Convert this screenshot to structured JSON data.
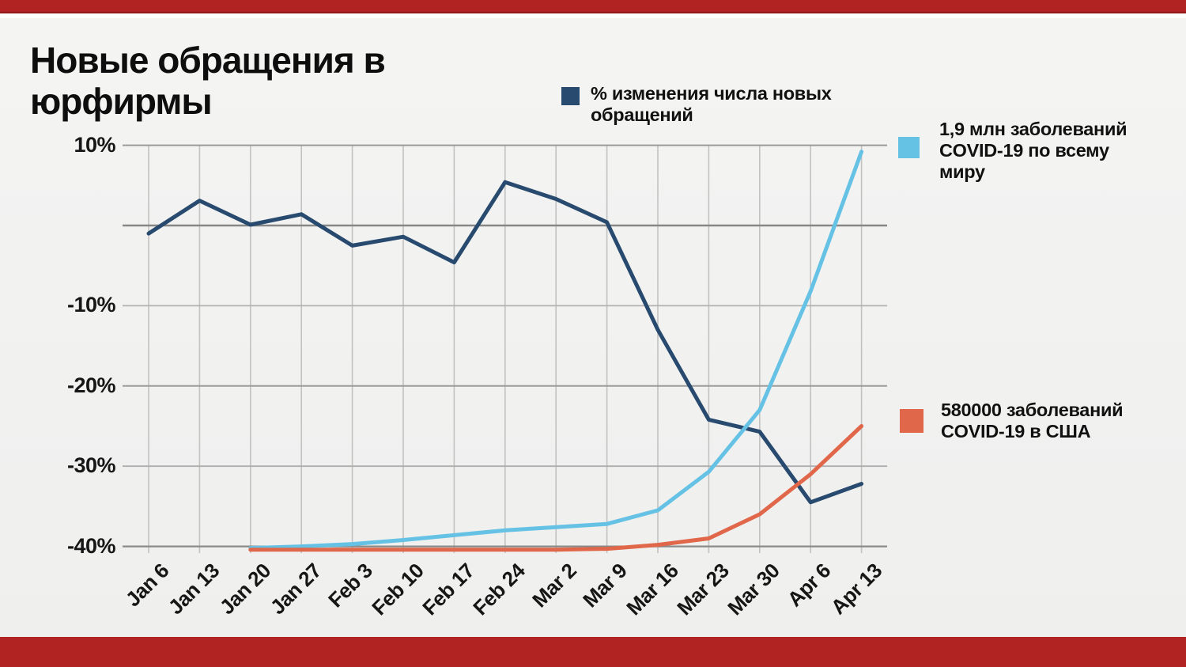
{
  "page": {
    "title": "Новые обращения в юрфирмы",
    "background_color": "#f1f1f0",
    "accent_red": "#b12222"
  },
  "legend": [
    {
      "label": "% изменения числа новых обращений",
      "lines": [
        "% изменения числа новых",
        "обращений"
      ],
      "color": "#274a6e"
    },
    {
      "label": "1,9 млн заболеваний COVID-19 по всему миру",
      "lines": [
        "1,9 млн заболеваний",
        "COVID-19 по всему",
        "миру"
      ],
      "color": "#66c2e5"
    },
    {
      "label": "580000 заболеваний COVID-19 в США",
      "lines": [
        "580000 заболеваний",
        "COVID-19 в США"
      ],
      "color": "#e0674a"
    }
  ],
  "chart_data": {
    "type": "line",
    "title": "Новые обращения в юрфирмы",
    "xlabel": "",
    "ylabel": "",
    "ylim": [
      -40,
      10
    ],
    "grid": true,
    "legend_position": "right",
    "categories": [
      "Jan 6",
      "Jan 13",
      "Jan 20",
      "Jan 27",
      "Feb 3",
      "Feb 10",
      "Feb 17",
      "Feb 24",
      "Mar 2",
      "Mar 9",
      "Mar 16",
      "Mar 23",
      "Mar 30",
      "Apr 6",
      "Apr 13"
    ],
    "y_ticks": [
      {
        "label": "10%",
        "value": 10
      },
      {
        "label": "-10%",
        "value": -10
      },
      {
        "label": "-20%",
        "value": -20
      },
      {
        "label": "-30%",
        "value": -30
      },
      {
        "label": "-40%",
        "value": -40
      }
    ],
    "zero_line_value": 0,
    "series": [
      {
        "name": "% изменения числа новых обращений",
        "color": "#274a6e",
        "values": [
          -1,
          3.1,
          0.1,
          1.4,
          -2.5,
          -1.4,
          -4.6,
          5.4,
          3.3,
          0.4,
          -13,
          -24.2,
          -25.7,
          -34.5,
          -32.2
        ]
      },
      {
        "name": "1,9 млн заболеваний COVID-19 по всему миру",
        "color": "#66c2e5",
        "values": [
          null,
          null,
          -40.2,
          -40,
          -39.7,
          -39.2,
          -38.6,
          -38,
          -37.6,
          -37.2,
          -35.5,
          -30.7,
          -23,
          -8.2,
          9.2
        ]
      },
      {
        "name": "580000 заболеваний COVID-19 в США",
        "color": "#e0674a",
        "values": [
          null,
          null,
          -40.4,
          -40.4,
          -40.4,
          -40.4,
          -40.4,
          -40.4,
          -40.4,
          -40.3,
          -39.8,
          -39,
          -36,
          -31,
          -25
        ]
      }
    ]
  }
}
